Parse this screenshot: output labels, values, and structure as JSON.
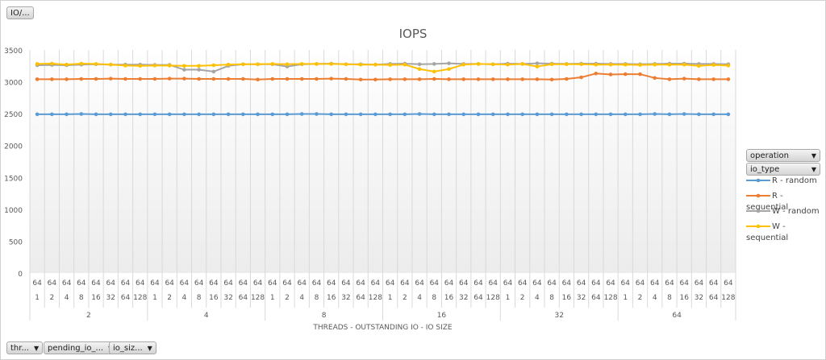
{
  "top_button": "IO/...",
  "filters": [
    {
      "label": "thr..."
    },
    {
      "label": "pending_io_..."
    },
    {
      "label": "io_siz..."
    }
  ],
  "legend_fields": [
    {
      "label": "operation"
    },
    {
      "label": "io_type"
    }
  ],
  "chart_data": {
    "type": "line",
    "title": "IOPS",
    "xlabel": "THREADS - OUTSTANDING IO - IO SIZE",
    "ylabel": "",
    "ylim": [
      0,
      3500
    ],
    "yticks": [
      0,
      500,
      1000,
      1500,
      2000,
      2500,
      3000,
      3500
    ],
    "grid": true,
    "legend_position": "right",
    "thread_groups": [
      "2",
      "4",
      "8",
      "16",
      "32",
      "64"
    ],
    "outstanding_io": "64",
    "io_sizes": [
      "1",
      "2",
      "4",
      "8",
      "16",
      "32",
      "64",
      "128"
    ],
    "series": [
      {
        "name": "R - random",
        "color": "#5b9bd5",
        "values": [
          2490,
          2490,
          2490,
          2495,
          2490,
          2490,
          2490,
          2490,
          2490,
          2490,
          2490,
          2490,
          2490,
          2490,
          2490,
          2490,
          2490,
          2490,
          2495,
          2495,
          2490,
          2490,
          2490,
          2490,
          2490,
          2490,
          2495,
          2490,
          2490,
          2490,
          2490,
          2490,
          2490,
          2490,
          2490,
          2490,
          2490,
          2490,
          2490,
          2490,
          2490,
          2490,
          2495,
          2490,
          2495,
          2490,
          2490,
          2490
        ]
      },
      {
        "name": "R - sequential",
        "color": "#ed7d31",
        "values": [
          3040,
          3040,
          3040,
          3045,
          3045,
          3050,
          3045,
          3045,
          3045,
          3050,
          3050,
          3045,
          3045,
          3045,
          3045,
          3035,
          3045,
          3045,
          3045,
          3045,
          3050,
          3045,
          3035,
          3035,
          3040,
          3040,
          3040,
          3045,
          3040,
          3040,
          3040,
          3040,
          3040,
          3040,
          3040,
          3035,
          3045,
          3070,
          3130,
          3115,
          3120,
          3120,
          3060,
          3040,
          3050,
          3040,
          3040,
          3040
        ]
      },
      {
        "name": "W - random",
        "color": "#a5a5a5",
        "values": [
          3260,
          3265,
          3260,
          3270,
          3275,
          3270,
          3270,
          3270,
          3265,
          3265,
          3190,
          3190,
          3160,
          3250,
          3275,
          3275,
          3275,
          3240,
          3275,
          3280,
          3285,
          3275,
          3275,
          3270,
          3280,
          3285,
          3275,
          3280,
          3290,
          3280,
          3280,
          3275,
          3285,
          3280,
          3290,
          3285,
          3280,
          3285,
          3285,
          3280,
          3280,
          3275,
          3280,
          3285,
          3285,
          3280,
          3280,
          3275
        ]
      },
      {
        "name": "W - sequential",
        "color": "#ffc000",
        "values": [
          3280,
          3285,
          3270,
          3285,
          3280,
          3270,
          3255,
          3250,
          3255,
          3255,
          3250,
          3250,
          3260,
          3270,
          3275,
          3275,
          3280,
          3275,
          3280,
          3280,
          3280,
          3275,
          3270,
          3270,
          3265,
          3270,
          3200,
          3160,
          3200,
          3270,
          3280,
          3275,
          3270,
          3280,
          3240,
          3275,
          3275,
          3275,
          3270,
          3270,
          3270,
          3265,
          3270,
          3270,
          3270,
          3250,
          3265,
          3255
        ]
      }
    ]
  }
}
